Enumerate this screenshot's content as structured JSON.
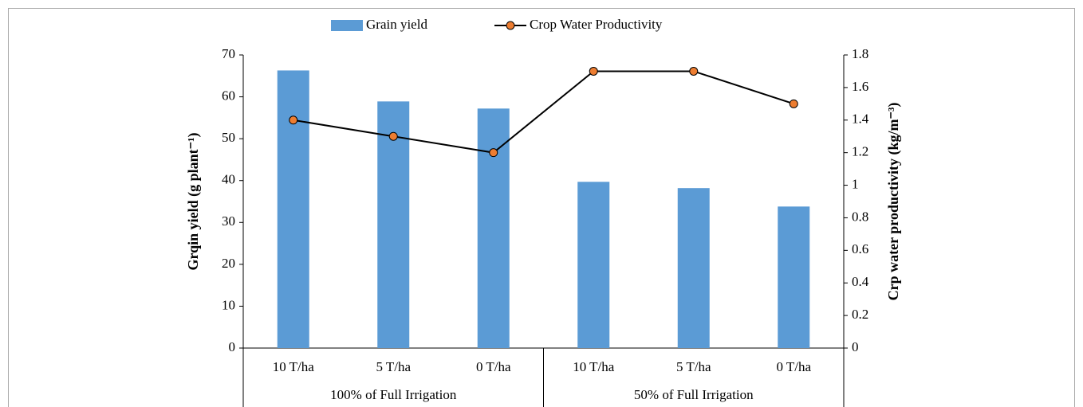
{
  "chart_data": {
    "type": "bar-line",
    "groups": [
      {
        "name": "100% of Full Irrigation",
        "categories": [
          "10 T/ha",
          "5 T/ha",
          "0 T/ha"
        ]
      },
      {
        "name": "50% of Full Irrigation",
        "categories": [
          "10 T/ha",
          "5 T/ha",
          "0 T/ha"
        ]
      }
    ],
    "series": [
      {
        "name": "Grain yield",
        "type": "bar",
        "color": "#5b9bd5",
        "values": [
          66.3,
          58.9,
          57.2,
          39.7,
          38.2,
          33.8
        ]
      },
      {
        "name": "Crop Water Productivity",
        "type": "line",
        "axis": "y2",
        "color": "#000000",
        "marker_color": "#ed7d31",
        "values": [
          1.4,
          1.3,
          1.2,
          1.7,
          1.7,
          1.5
        ]
      }
    ],
    "ylabel": "Grqin yield (g plant⁻¹)",
    "y2label": "Crp water productivity (kg/m⁻³)",
    "ylim": [
      0,
      70
    ],
    "yticks": [
      0,
      10,
      20,
      30,
      40,
      50,
      60,
      70
    ],
    "y2lim": [
      0,
      1.8
    ],
    "y2ticks": [
      0,
      0.2,
      0.4,
      0.6,
      0.8,
      1,
      1.2,
      1.4,
      1.6,
      1.8
    ],
    "legend": "top"
  }
}
